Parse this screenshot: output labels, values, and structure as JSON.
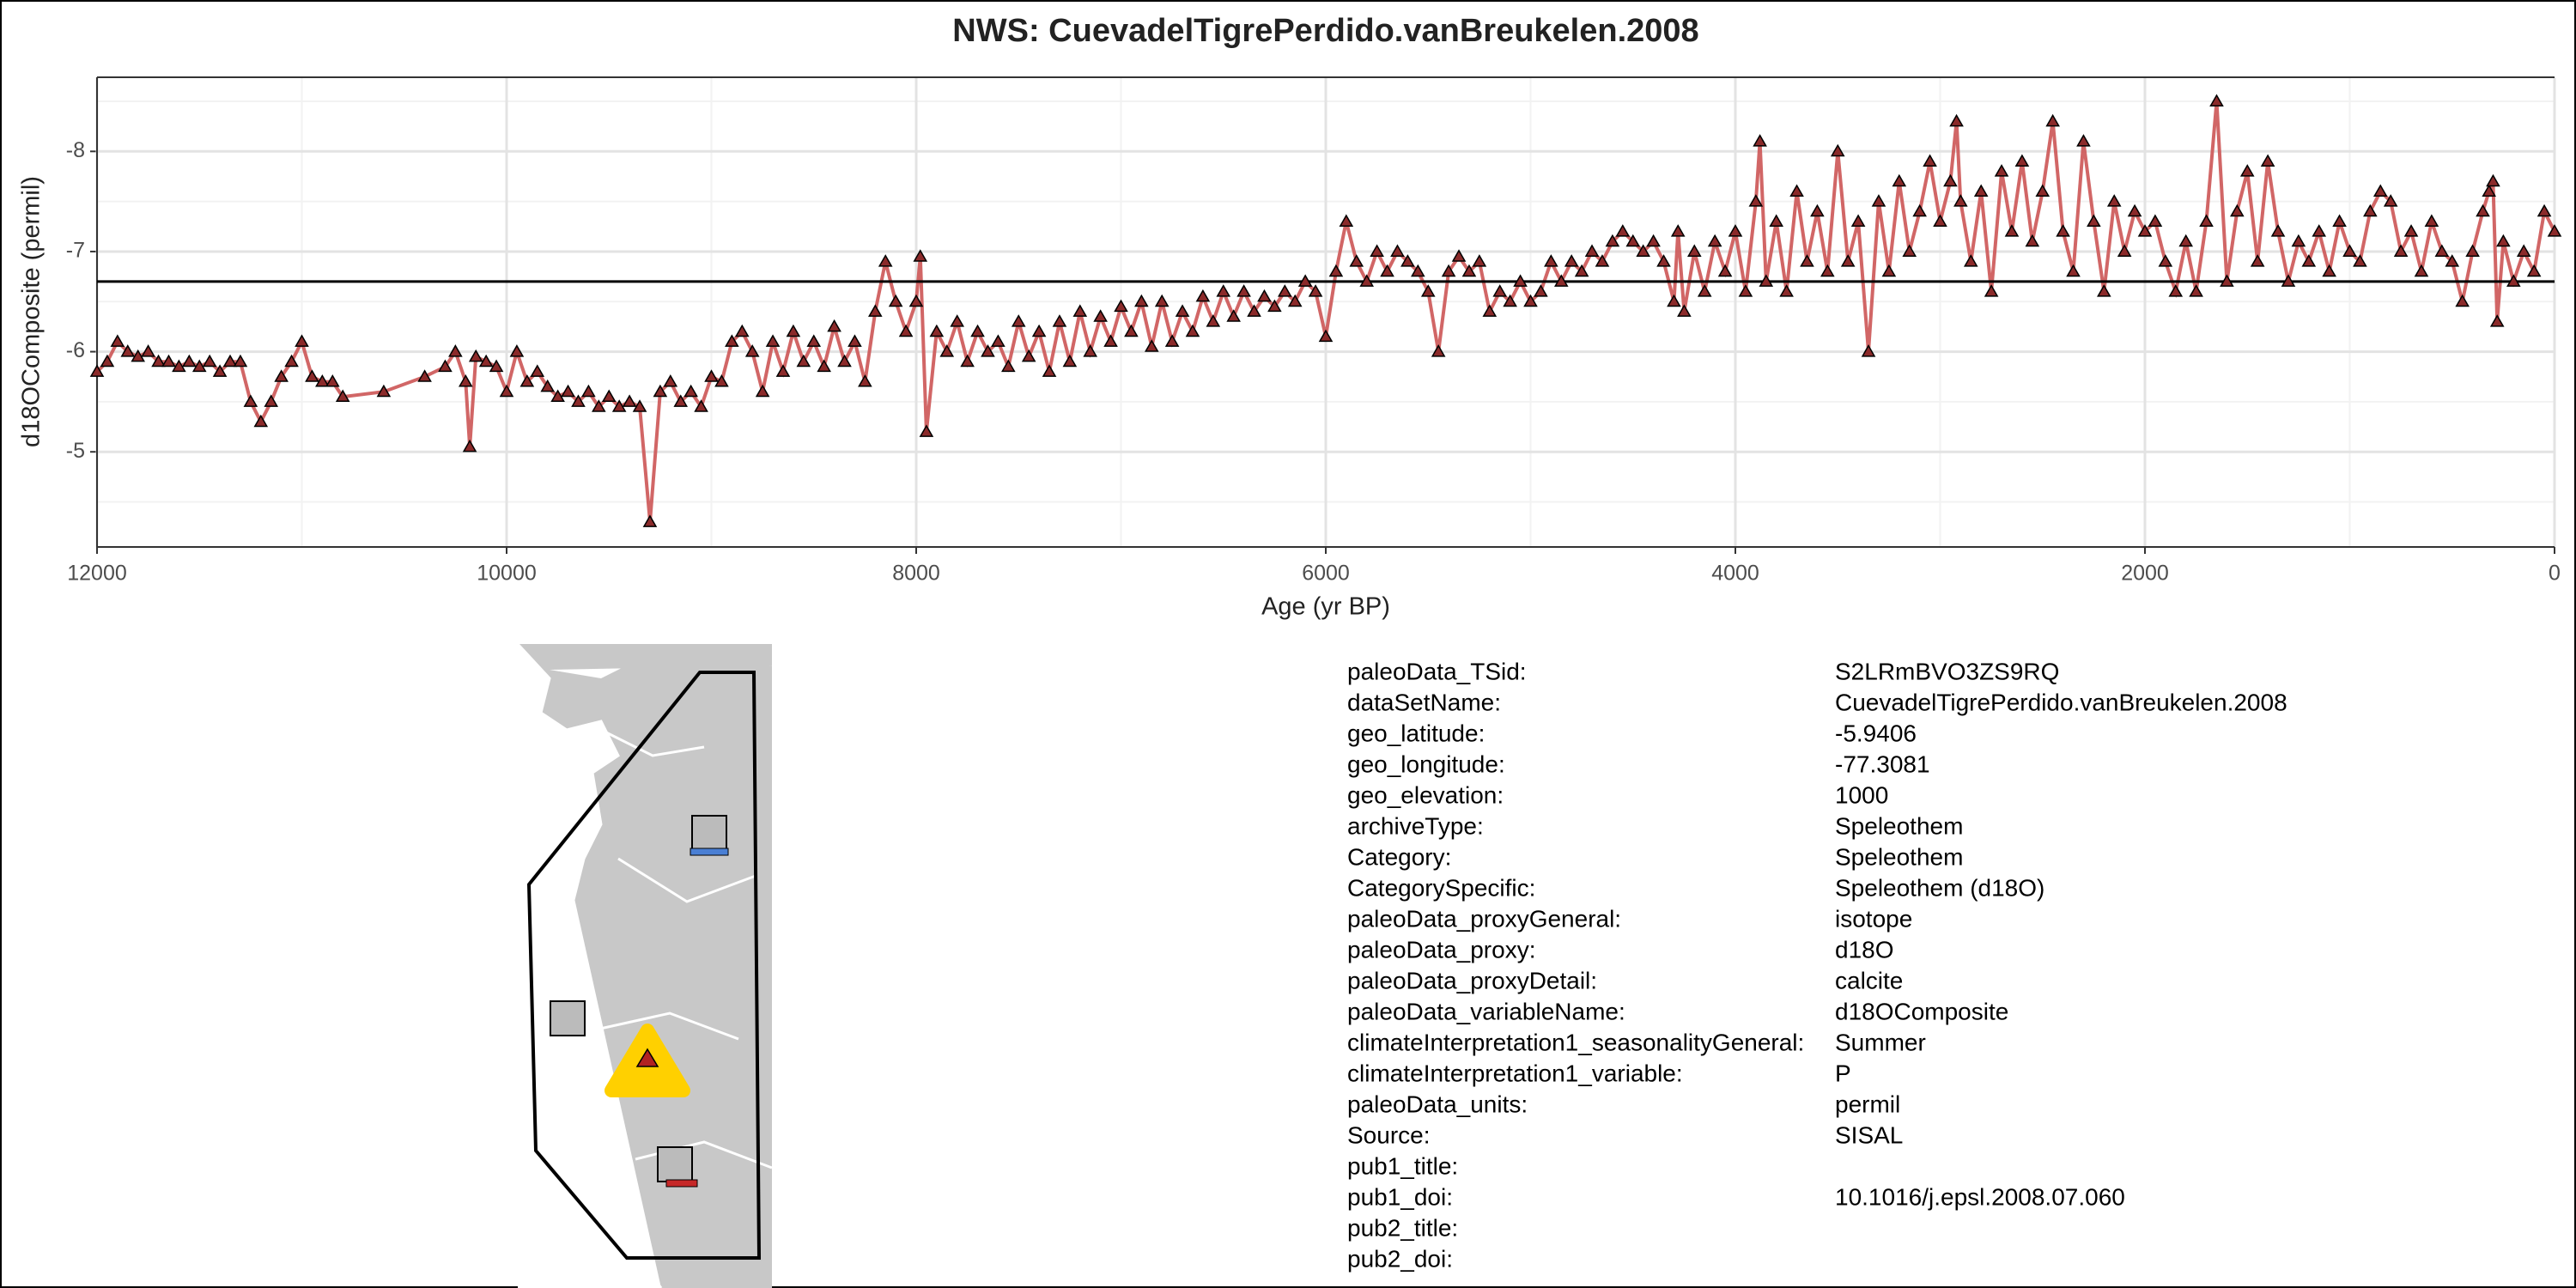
{
  "chart_data": {
    "type": "line",
    "title": "NWS: CuevadelTigrePerdido.vanBreukelen.2008",
    "xlabel": "Age (yr BP)",
    "ylabel": "d18OComposite (permil)",
    "xlim": [
      12000,
      0
    ],
    "xticks": [
      12000,
      10000,
      8000,
      6000,
      4000,
      2000,
      0
    ],
    "ylim": [
      -4.05,
      -8.74
    ],
    "yticks": [
      -8,
      -7,
      -6,
      -5
    ],
    "grid": true,
    "minor_grid": true,
    "hline": -6.7,
    "line_color": "#cc5555",
    "marker_color": "#8b2a2a",
    "x": [
      12000,
      11950,
      11900,
      11850,
      11800,
      11750,
      11700,
      11650,
      11600,
      11550,
      11500,
      11450,
      11400,
      11350,
      11300,
      11250,
      11200,
      11150,
      11100,
      11050,
      11000,
      10950,
      10900,
      10850,
      10800,
      10600,
      10400,
      10300,
      10250,
      10200,
      10180,
      10150,
      10100,
      10050,
      10000,
      9950,
      9900,
      9850,
      9800,
      9750,
      9700,
      9650,
      9600,
      9550,
      9500,
      9450,
      9400,
      9350,
      9300,
      9250,
      9200,
      9150,
      9100,
      9050,
      9000,
      8950,
      8900,
      8850,
      8800,
      8750,
      8700,
      8650,
      8600,
      8550,
      8500,
      8450,
      8400,
      8350,
      8300,
      8250,
      8200,
      8150,
      8100,
      8050,
      8000,
      7980,
      7950,
      7900,
      7850,
      7800,
      7750,
      7700,
      7650,
      7600,
      7550,
      7500,
      7450,
      7400,
      7350,
      7300,
      7250,
      7200,
      7150,
      7100,
      7050,
      7000,
      6950,
      6900,
      6850,
      6800,
      6750,
      6700,
      6650,
      6600,
      6550,
      6500,
      6450,
      6400,
      6350,
      6300,
      6250,
      6200,
      6150,
      6100,
      6050,
      6000,
      5950,
      5900,
      5850,
      5800,
      5750,
      5700,
      5650,
      5600,
      5550,
      5500,
      5450,
      5400,
      5350,
      5300,
      5250,
      5200,
      5150,
      5100,
      5050,
      5000,
      4950,
      4900,
      4850,
      4800,
      4750,
      4700,
      4650,
      4600,
      4550,
      4500,
      4450,
      4400,
      4350,
      4300,
      4280,
      4250,
      4200,
      4150,
      4100,
      4050,
      4000,
      3950,
      3900,
      3880,
      3850,
      3800,
      3750,
      3700,
      3650,
      3600,
      3550,
      3500,
      3450,
      3400,
      3350,
      3300,
      3250,
      3200,
      3150,
      3100,
      3050,
      3000,
      2950,
      2920,
      2900,
      2850,
      2800,
      2750,
      2700,
      2650,
      2600,
      2550,
      2500,
      2450,
      2400,
      2350,
      2300,
      2250,
      2200,
      2150,
      2100,
      2050,
      2000,
      1950,
      1900,
      1850,
      1800,
      1750,
      1700,
      1650,
      1600,
      1550,
      1500,
      1450,
      1400,
      1350,
      1300,
      1250,
      1200,
      1150,
      1100,
      1050,
      1000,
      950,
      900,
      850,
      800,
      750,
      700,
      650,
      600,
      550,
      500,
      450,
      400,
      350,
      320,
      300,
      280,
      250,
      200,
      150,
      100,
      50,
      0
    ],
    "values": [
      -5.8,
      -5.9,
      -6.1,
      -6.0,
      -5.95,
      -6.0,
      -5.9,
      -5.9,
      -5.85,
      -5.9,
      -5.85,
      -5.9,
      -5.8,
      -5.9,
      -5.9,
      -5.5,
      -5.3,
      -5.5,
      -5.75,
      -5.9,
      -6.1,
      -5.75,
      -5.7,
      -5.7,
      -5.55,
      -5.6,
      -5.75,
      -5.85,
      -6.0,
      -5.7,
      -5.05,
      -5.95,
      -5.9,
      -5.85,
      -5.6,
      -6.0,
      -5.7,
      -5.8,
      -5.65,
      -5.55,
      -5.6,
      -5.5,
      -5.6,
      -5.45,
      -5.55,
      -5.45,
      -5.5,
      -5.45,
      -4.3,
      -5.6,
      -5.7,
      -5.5,
      -5.6,
      -5.45,
      -5.75,
      -5.7,
      -6.1,
      -6.2,
      -6.0,
      -5.6,
      -6.1,
      -5.8,
      -6.2,
      -5.9,
      -6.1,
      -5.85,
      -6.25,
      -5.9,
      -6.1,
      -5.7,
      -6.4,
      -6.9,
      -6.5,
      -6.2,
      -6.5,
      -6.95,
      -5.2,
      -6.2,
      -6.0,
      -6.3,
      -5.9,
      -6.2,
      -6.0,
      -6.1,
      -5.85,
      -6.3,
      -5.95,
      -6.2,
      -5.8,
      -6.3,
      -5.9,
      -6.4,
      -6.0,
      -6.35,
      -6.1,
      -6.45,
      -6.2,
      -6.5,
      -6.05,
      -6.5,
      -6.1,
      -6.4,
      -6.2,
      -6.55,
      -6.3,
      -6.6,
      -6.35,
      -6.6,
      -6.4,
      -6.55,
      -6.45,
      -6.6,
      -6.5,
      -6.7,
      -6.6,
      -6.15,
      -6.8,
      -7.3,
      -6.9,
      -6.7,
      -7.0,
      -6.8,
      -7.0,
      -6.9,
      -6.8,
      -6.6,
      -6.0,
      -6.8,
      -6.95,
      -6.8,
      -6.9,
      -6.4,
      -6.6,
      -6.5,
      -6.7,
      -6.5,
      -6.6,
      -6.9,
      -6.7,
      -6.9,
      -6.8,
      -7.0,
      -6.9,
      -7.1,
      -7.2,
      -7.1,
      -7.0,
      -7.1,
      -6.9,
      -6.5,
      -7.2,
      -6.4,
      -7.0,
      -6.6,
      -7.1,
      -6.8,
      -7.2,
      -6.6,
      -7.5,
      -8.1,
      -6.7,
      -7.3,
      -6.6,
      -7.6,
      -6.9,
      -7.4,
      -6.8,
      -8.0,
      -6.9,
      -7.3,
      -6.0,
      -7.5,
      -6.8,
      -7.7,
      -7.0,
      -7.4,
      -7.9,
      -7.3,
      -7.7,
      -8.3,
      -7.5,
      -6.9,
      -7.6,
      -6.6,
      -7.8,
      -7.2,
      -7.9,
      -7.1,
      -7.6,
      -8.3,
      -7.2,
      -6.8,
      -8.1,
      -7.3,
      -6.6,
      -7.5,
      -7.0,
      -7.4,
      -7.2,
      -7.3,
      -6.9,
      -6.6,
      -7.1,
      -6.6,
      -7.3,
      -8.5,
      -6.7,
      -7.4,
      -7.8,
      -6.9,
      -7.9,
      -7.2,
      -6.7,
      -7.1,
      -6.9,
      -7.2,
      -6.8,
      -7.3,
      -7.0,
      -6.9,
      -7.4,
      -7.6,
      -7.5,
      -7.0,
      -7.2,
      -6.8,
      -7.3,
      -7.0,
      -6.9,
      -6.5,
      -7.0,
      -7.4,
      -7.6,
      -7.7,
      -6.3,
      -7.1,
      -6.7,
      -7.0,
      -6.8,
      -7.4,
      -7.2
    ]
  },
  "metadata": {
    "rows": [
      [
        "paleoData_TSid:",
        "S2LRmBVO3ZS9RQ"
      ],
      [
        "dataSetName:",
        "CuevadelTigrePerdido.vanBreukelen.2008"
      ],
      [
        "geo_latitude:",
        "-5.9406"
      ],
      [
        "geo_longitude:",
        "-77.3081"
      ],
      [
        "geo_elevation:",
        "1000"
      ],
      [
        "archiveType:",
        "Speleothem"
      ],
      [
        "Category:",
        "Speleothem"
      ],
      [
        "CategorySpecific:",
        "Speleothem (d18O)"
      ],
      [
        "paleoData_proxyGeneral:",
        "isotope"
      ],
      [
        "paleoData_proxy:",
        "d18O"
      ],
      [
        "paleoData_proxyDetail:",
        "calcite"
      ],
      [
        "paleoData_variableName:",
        "d18OComposite"
      ],
      [
        "climateInterpretation1_seasonalityGeneral:",
        "Summer"
      ],
      [
        "climateInterpretation1_variable:",
        "P"
      ],
      [
        "paleoData_units:",
        "permil"
      ],
      [
        "Source:",
        "SISAL"
      ],
      [
        "pub1_title:"
      ],
      [
        "pub1_doi:",
        "10.1016/j.epsl.2008.07.060"
      ],
      [
        "pub2_title:"
      ],
      [
        "pub2_doi:"
      ]
    ]
  }
}
